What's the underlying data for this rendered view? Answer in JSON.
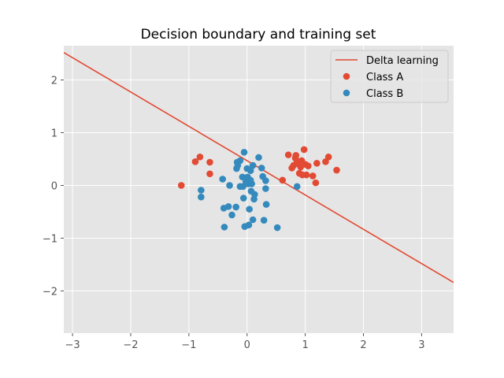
{
  "chart_data": {
    "type": "scatter",
    "title": "Decision boundary and training set",
    "xlabel": "",
    "ylabel": "",
    "xlim": [
      -3.15,
      3.55
    ],
    "ylim": [
      -2.8,
      2.65
    ],
    "x_ticks": [
      -3,
      -2,
      -1,
      0,
      1,
      2,
      3
    ],
    "y_ticks": [
      -2,
      -1,
      0,
      1,
      2
    ],
    "x_tick_labels": [
      "−3",
      "−2",
      "−1",
      "0",
      "1",
      "2",
      "3"
    ],
    "y_tick_labels": [
      "−2",
      "−1",
      "0",
      "1",
      "2"
    ],
    "grid": true,
    "legend_position": "top-right",
    "line": {
      "name": "Delta learning",
      "color": "#E24A33",
      "x": [
        -3.15,
        3.55
      ],
      "y": [
        2.52,
        -1.84
      ]
    },
    "series": [
      {
        "name": "Class A",
        "color": "#E24A33",
        "points": [
          [
            -1.13,
            0.0
          ],
          [
            -0.89,
            0.45
          ],
          [
            -0.81,
            0.54
          ],
          [
            -0.64,
            0.44
          ],
          [
            -0.64,
            0.22
          ],
          [
            0.61,
            0.1
          ],
          [
            0.71,
            0.58
          ],
          [
            0.77,
            0.33
          ],
          [
            0.8,
            0.38
          ],
          [
            0.83,
            0.52
          ],
          [
            0.86,
            0.46
          ],
          [
            0.88,
            0.41
          ],
          [
            0.9,
            0.23
          ],
          [
            0.92,
            0.35
          ],
          [
            0.94,
            0.47
          ],
          [
            0.95,
            0.2
          ],
          [
            0.98,
            0.68
          ],
          [
            1.0,
            0.4
          ],
          [
            1.02,
            0.2
          ],
          [
            1.05,
            0.37
          ],
          [
            1.13,
            0.18
          ],
          [
            1.18,
            0.05
          ],
          [
            1.2,
            0.42
          ],
          [
            1.35,
            0.45
          ],
          [
            1.4,
            0.54
          ],
          [
            1.54,
            0.29
          ],
          [
            0.84,
            0.57
          ]
        ]
      },
      {
        "name": "Class B",
        "color": "#348ABD",
        "points": [
          [
            -0.79,
            -0.09
          ],
          [
            -0.79,
            -0.22
          ],
          [
            -0.42,
            0.12
          ],
          [
            -0.4,
            -0.43
          ],
          [
            -0.39,
            -0.79
          ],
          [
            -0.32,
            -0.4
          ],
          [
            -0.3,
            0.0
          ],
          [
            -0.26,
            -0.56
          ],
          [
            -0.19,
            -0.41
          ],
          [
            -0.18,
            0.32
          ],
          [
            -0.17,
            0.44
          ],
          [
            -0.16,
            0.38
          ],
          [
            -0.12,
            0.47
          ],
          [
            -0.12,
            -0.02
          ],
          [
            -0.08,
            0.16
          ],
          [
            -0.07,
            -0.02
          ],
          [
            -0.06,
            -0.24
          ],
          [
            -0.05,
            0.63
          ],
          [
            -0.04,
            -0.78
          ],
          [
            -0.02,
            0.07
          ],
          [
            0.0,
            0.32
          ],
          [
            0.01,
            0.16
          ],
          [
            0.02,
            0.03
          ],
          [
            0.03,
            -0.75
          ],
          [
            0.04,
            -0.45
          ],
          [
            0.06,
            0.1
          ],
          [
            0.06,
            0.28
          ],
          [
            0.07,
            -0.11
          ],
          [
            0.08,
            0.03
          ],
          [
            0.1,
            -0.65
          ],
          [
            0.1,
            0.38
          ],
          [
            0.12,
            -0.26
          ],
          [
            0.13,
            -0.17
          ],
          [
            0.2,
            0.53
          ],
          [
            0.25,
            0.33
          ],
          [
            0.27,
            0.17
          ],
          [
            0.29,
            -0.66
          ],
          [
            0.32,
            0.09
          ],
          [
            0.32,
            -0.06
          ],
          [
            0.33,
            -0.36
          ],
          [
            0.52,
            -0.8
          ],
          [
            0.86,
            -0.02
          ]
        ]
      }
    ]
  }
}
